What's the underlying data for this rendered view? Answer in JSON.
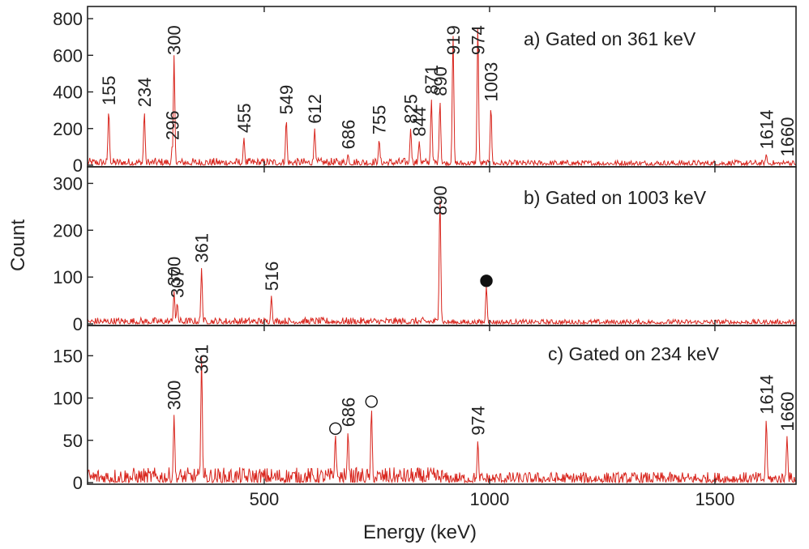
{
  "chart_data": {
    "type": "line",
    "xlabel": "Energy (keV)",
    "ylabel": "Count",
    "xlim": [
      108,
      1680
    ],
    "x_ticks": [
      500,
      1000,
      1500
    ],
    "series_color": "#d8241c",
    "panels": [
      {
        "title": "a) Gated on 361 keV",
        "ylim": [
          0,
          840
        ],
        "y_ticks": [
          0,
          200,
          400,
          600,
          800
        ],
        "noise_level": 40,
        "peaks": [
          {
            "label": "155",
            "energy": 155,
            "height": 300
          },
          {
            "label": "234",
            "energy": 234,
            "height": 290
          },
          {
            "label": "296",
            "energy": 296,
            "height": 110
          },
          {
            "label": "300",
            "energy": 300,
            "height": 600
          },
          {
            "label": "455",
            "energy": 455,
            "height": 150
          },
          {
            "label": "549",
            "energy": 549,
            "height": 250
          },
          {
            "label": "612",
            "energy": 612,
            "height": 200
          },
          {
            "label": "686",
            "energy": 686,
            "height": 60
          },
          {
            "label": "755",
            "energy": 755,
            "height": 140
          },
          {
            "label": "825",
            "energy": 825,
            "height": 200
          },
          {
            "label": "844",
            "energy": 844,
            "height": 130
          },
          {
            "label": "871",
            "energy": 871,
            "height": 360
          },
          {
            "label": "890",
            "energy": 890,
            "height": 350
          },
          {
            "label": "919",
            "energy": 919,
            "height": 710
          },
          {
            "label": "974",
            "energy": 974,
            "height": 770
          },
          {
            "label": "1003",
            "energy": 1003,
            "height": 320
          },
          {
            "label": "1614",
            "energy": 1614,
            "height": 60
          },
          {
            "label": "1660",
            "energy": 1660,
            "height": 20
          }
        ],
        "markers": []
      },
      {
        "title": "b) Gated on 1003 keV",
        "ylim": [
          0,
          325
        ],
        "y_ticks": [
          0,
          100,
          200,
          300
        ],
        "noise_level": 14,
        "peaks": [
          {
            "label": "300",
            "energy": 300,
            "height": 70
          },
          {
            "label": "307",
            "energy": 307,
            "height": 45
          },
          {
            "label": "361",
            "energy": 361,
            "height": 120
          },
          {
            "label": "516",
            "energy": 516,
            "height": 60
          },
          {
            "label": "890",
            "energy": 890,
            "height": 270
          }
        ],
        "markers": [
          {
            "type": "filled-circle",
            "energy": 993,
            "height": 85
          }
        ]
      },
      {
        "title": "c) Gated on 234 keV",
        "ylim": [
          0,
          180
        ],
        "y_ticks": [
          0,
          50,
          100,
          150
        ],
        "noise_level": 18,
        "peaks": [
          {
            "label": "300",
            "energy": 300,
            "height": 80
          },
          {
            "label": "361",
            "energy": 361,
            "height": 150
          },
          {
            "label": "686",
            "energy": 686,
            "height": 60
          },
          {
            "label": "974",
            "energy": 974,
            "height": 50
          },
          {
            "label": "1614",
            "energy": 1614,
            "height": 75
          },
          {
            "label": "1660",
            "energy": 1660,
            "height": 55
          }
        ],
        "markers": [
          {
            "type": "open-circle",
            "energy": 658,
            "height": 60
          },
          {
            "type": "open-circle",
            "energy": 738,
            "height": 92
          }
        ]
      }
    ]
  }
}
